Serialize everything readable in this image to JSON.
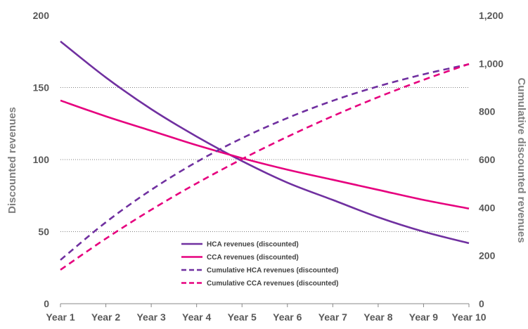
{
  "chart_data": {
    "type": "line",
    "title": "",
    "categories": [
      "Year 1",
      "Year 2",
      "Year 3",
      "Year 4",
      "Year 5",
      "Year 6",
      "Year 7",
      "Year 8",
      "Year 9",
      "Year 10"
    ],
    "ylabel": "Discounted revenues",
    "y2label": "Cumulative discounted revenues",
    "ylim": [
      0,
      200
    ],
    "y2lim": [
      0,
      1200
    ],
    "yticks": [
      0,
      50,
      100,
      150,
      200
    ],
    "yticklabels": [
      "0",
      "50",
      "100",
      "150",
      "200"
    ],
    "y2ticks": [
      0,
      200,
      400,
      600,
      800,
      1000,
      1200
    ],
    "y2ticklabels": [
      "0",
      "200",
      "400",
      "600",
      "800",
      "1,000",
      "1,200"
    ],
    "grid": "horizontal dotted at 50, 100, 150",
    "legend_position": "bottom-center",
    "series": [
      {
        "name": "HCA revenues (discounted)",
        "axis": "left",
        "style": "solid",
        "color": "#7030a0",
        "values": [
          182,
          157,
          135,
          116,
          99,
          84,
          72,
          60,
          50,
          42
        ]
      },
      {
        "name": "CCA revenues (discounted)",
        "axis": "left",
        "style": "solid",
        "color": "#e6007e",
        "values": [
          141,
          130,
          120,
          110,
          101,
          93,
          86,
          79,
          72,
          66
        ]
      },
      {
        "name": "Cumulative HCA revenues (discounted)",
        "axis": "right",
        "style": "dashed",
        "color": "#7030a0",
        "values": [
          182,
          339,
          474,
          590,
          689,
          773,
          845,
          905,
          955,
          997
        ]
      },
      {
        "name": "Cumulative CCA revenues (discounted)",
        "axis": "right",
        "style": "dashed",
        "color": "#e6007e",
        "values": [
          141,
          271,
          391,
          501,
          602,
          695,
          781,
          860,
          932,
          998
        ]
      }
    ]
  }
}
